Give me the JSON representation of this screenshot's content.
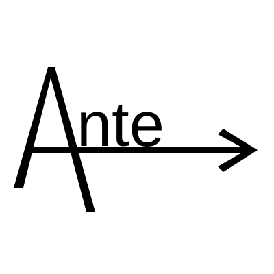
{
  "logo": {
    "wordmark_suffix": "nte",
    "full_text": "Ante",
    "arrow_icon": "right-arrow-icon",
    "colors": {
      "ink": "#000000",
      "background": "#ffffff"
    }
  }
}
